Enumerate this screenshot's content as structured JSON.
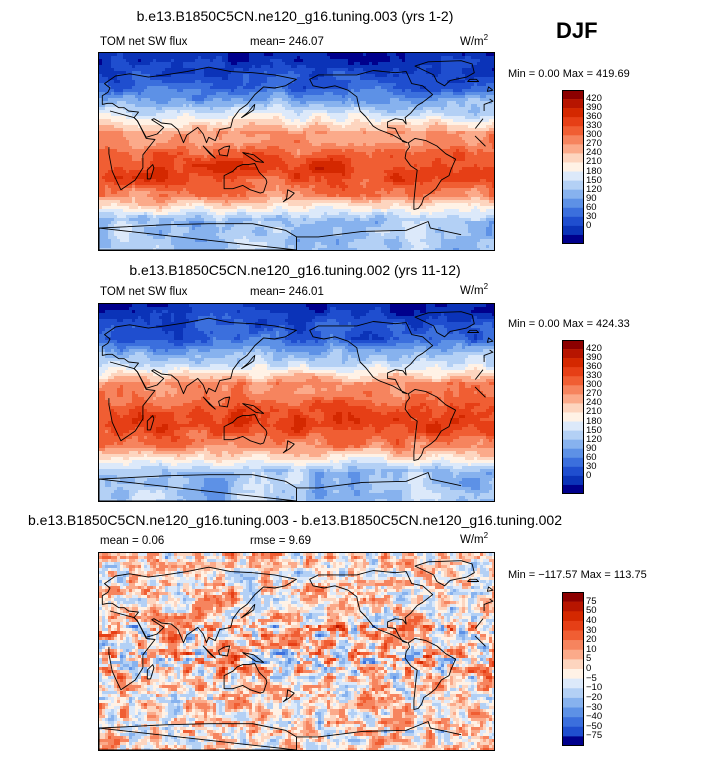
{
  "season": "DJF",
  "units_base": "W/m",
  "units_sup": "2",
  "panels": [
    {
      "title": "b.e13.B1850C5CN.ne120_g16.tuning.003 (yrs 1-2)",
      "left_label": "TOM net SW flux",
      "stat_text": "mean= 246.07",
      "minmax": "Min =   0.00 Max = 419.69",
      "palette": "blue-red",
      "colorbar": {
        "labels": [
          "420",
          "390",
          "360",
          "330",
          "300",
          "270",
          "240",
          "210",
          "180",
          "150",
          "120",
          "90",
          "60",
          "30",
          "0"
        ],
        "colors": [
          "#8c0000",
          "#b71500",
          "#d42800",
          "#e63f16",
          "#f05e33",
          "#f6845e",
          "#fbaa8a",
          "#fdd5bf",
          "#fff2e6",
          "#dce9fa",
          "#b3d0f5",
          "#87b2ee",
          "#5d91e6",
          "#3b6fdd",
          "#1f4ecf",
          "#0b33b8",
          "#00008c"
        ]
      }
    },
    {
      "title": "b.e13.B1850C5CN.ne120_g16.tuning.002 (yrs 11-12)",
      "left_label": "TOM net SW flux",
      "stat_text": "mean= 246.01",
      "minmax": "Min =   0.00 Max = 424.33",
      "palette": "blue-red",
      "colorbar": {
        "labels": [
          "420",
          "390",
          "360",
          "330",
          "300",
          "270",
          "240",
          "210",
          "180",
          "150",
          "120",
          "90",
          "60",
          "30",
          "0"
        ],
        "colors": [
          "#8c0000",
          "#b71500",
          "#d42800",
          "#e63f16",
          "#f05e33",
          "#f6845e",
          "#fbaa8a",
          "#fdd5bf",
          "#fff2e6",
          "#dce9fa",
          "#b3d0f5",
          "#87b2ee",
          "#5d91e6",
          "#3b6fdd",
          "#1f4ecf",
          "#0b33b8",
          "#00008c"
        ]
      }
    },
    {
      "title": "b.e13.B1850C5CN.ne120_g16.tuning.003 - b.e13.B1850C5CN.ne120_g16.tuning.002",
      "left_label": "mean =    0.06",
      "stat_text": "rmse =    9.69",
      "minmax": "Min = −117.57 Max = 113.75",
      "palette": "diff",
      "colorbar": {
        "labels": [
          "75",
          "50",
          "40",
          "30",
          "20",
          "10",
          "5",
          "0",
          "−5",
          "−10",
          "−20",
          "−30",
          "−40",
          "−50",
          "−75"
        ],
        "colors": [
          "#8c0000",
          "#b71500",
          "#d42800",
          "#e63f16",
          "#f05e33",
          "#f6845e",
          "#fbaa8a",
          "#fdd5bf",
          "#fff2e6",
          "#dce9fa",
          "#b3d0f5",
          "#87b2ee",
          "#5d91e6",
          "#3b6fdd",
          "#1f4ecf",
          "#00008c"
        ]
      }
    }
  ],
  "chart_data": [
    {
      "type": "heatmap",
      "title": "b.e13.B1850C5CN.ne120_g16.tuning.003 (yrs 1-2)",
      "variable": "TOM net SW flux",
      "units": "W/m2",
      "season": "DJF",
      "mean": 246.07,
      "min": 0.0,
      "max": 419.69,
      "contour_levels": [
        0,
        30,
        60,
        90,
        120,
        150,
        180,
        210,
        240,
        270,
        300,
        330,
        360,
        390,
        420
      ]
    },
    {
      "type": "heatmap",
      "title": "b.e13.B1850C5CN.ne120_g16.tuning.002 (yrs 11-12)",
      "variable": "TOM net SW flux",
      "units": "W/m2",
      "season": "DJF",
      "mean": 246.01,
      "min": 0.0,
      "max": 424.33,
      "contour_levels": [
        0,
        30,
        60,
        90,
        120,
        150,
        180,
        210,
        240,
        270,
        300,
        330,
        360,
        390,
        420
      ]
    },
    {
      "type": "heatmap",
      "title": "b.e13.B1850C5CN.ne120_g16.tuning.003 - b.e13.B1850C5CN.ne120_g16.tuning.002",
      "units": "W/m2",
      "season": "DJF",
      "mean": 0.06,
      "rmse": 9.69,
      "min": -117.57,
      "max": 113.75,
      "contour_levels": [
        -75,
        -50,
        -40,
        -30,
        -20,
        -10,
        -5,
        0,
        5,
        10,
        20,
        30,
        40,
        50,
        75
      ]
    }
  ]
}
